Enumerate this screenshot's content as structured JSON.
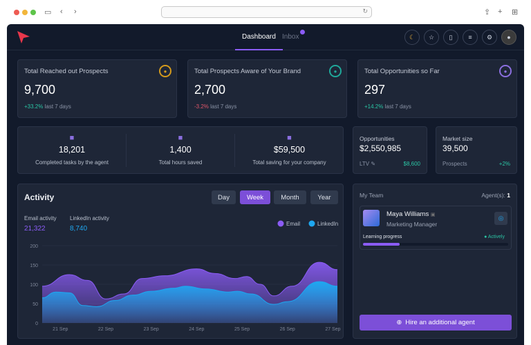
{
  "browser": {
    "url": ""
  },
  "nav": {
    "tabs": [
      {
        "label": "Dashboard",
        "active": true
      },
      {
        "label": "Inbox",
        "badge": true
      }
    ],
    "icons": [
      "moon-icon",
      "star-icon",
      "book-icon",
      "database-icon",
      "gear-icon",
      "avatar"
    ]
  },
  "kpis": [
    {
      "title": "Total Reached out Prospects",
      "value": "9,700",
      "change": "+33.2%",
      "change_color": "#2bc4a4",
      "period": "last 7 days",
      "icon": "users-icon",
      "icon_color": "#d49a1c"
    },
    {
      "title": "Total Prospects Aware of Your Brand",
      "value": "2,700",
      "change": "-3.2%",
      "change_color": "#e0566a",
      "period": "last 7 days",
      "icon": "globe-icon",
      "icon_color": "#1fa89a"
    },
    {
      "title": "Total Opportunities so Far",
      "value": "297",
      "change": "+14.2%",
      "change_color": "#2bc4a4",
      "period": "last 7 days",
      "icon": "money-icon",
      "icon_color": "#8b6fe0"
    }
  ],
  "stats": [
    {
      "value": "18,201",
      "label": "Completed tasks by the agent",
      "icon": "inbox-icon"
    },
    {
      "value": "1,400",
      "label": "Total hours saved",
      "icon": "clock-icon"
    },
    {
      "value": "$59,500",
      "label": "Total saving for your company",
      "icon": "money-icon"
    }
  ],
  "opportunities": {
    "title": "Opportunities",
    "value": "$2,550,985",
    "sub_label": "LTV",
    "sub_value": "$8,600"
  },
  "market": {
    "title": "Market size",
    "value": "39,500",
    "sub_label": "Prospects",
    "sub_value": "+2%"
  },
  "activity": {
    "title": "Activity",
    "ranges": [
      "Day",
      "Week",
      "Month",
      "Year"
    ],
    "selected": "Week",
    "email_label": "Email activity",
    "email_value": "21,322",
    "linkedin_label": "LinkedIn activity",
    "linkedin_value": "8,740"
  },
  "chart_data": {
    "type": "area",
    "ylim": [
      0,
      200
    ],
    "yticks": [
      0,
      50,
      100,
      150,
      200
    ],
    "xlim": [
      20.6,
      27.1
    ],
    "xticks": [
      {
        "x": 21,
        "label": "21 Sep"
      },
      {
        "x": 22,
        "label": "22 Sep"
      },
      {
        "x": 23,
        "label": "23 Sep"
      },
      {
        "x": 24,
        "label": "24 Sep"
      },
      {
        "x": 25,
        "label": "25 Sep"
      },
      {
        "x": 26,
        "label": "26 Sep"
      },
      {
        "x": 27,
        "label": "27 Sep"
      }
    ],
    "legend_position": "top-right",
    "grid": true,
    "series": [
      {
        "name": "Email",
        "color": "#8b5cf6",
        "points": [
          [
            20.6,
            95
          ],
          [
            21.2,
            125
          ],
          [
            21.6,
            110
          ],
          [
            22.0,
            62
          ],
          [
            22.4,
            75
          ],
          [
            22.8,
            115
          ],
          [
            23.3,
            122
          ],
          [
            24.0,
            140
          ],
          [
            24.4,
            128
          ],
          [
            24.85,
            115
          ],
          [
            25.1,
            120
          ],
          [
            25.4,
            100
          ],
          [
            25.7,
            70
          ],
          [
            26.1,
            95
          ],
          [
            26.7,
            157
          ],
          [
            27.1,
            138
          ]
        ]
      },
      {
        "name": "LinkedIn",
        "color": "#1ea7f0",
        "points": [
          [
            20.6,
            65
          ],
          [
            20.9,
            80
          ],
          [
            21.2,
            78
          ],
          [
            21.5,
            45
          ],
          [
            21.8,
            42
          ],
          [
            22.2,
            58
          ],
          [
            22.6,
            72
          ],
          [
            23.0,
            82
          ],
          [
            23.5,
            90
          ],
          [
            23.75,
            95
          ],
          [
            24.2,
            88
          ],
          [
            24.7,
            80
          ],
          [
            24.9,
            82
          ],
          [
            25.2,
            75
          ],
          [
            25.7,
            48
          ],
          [
            26.0,
            55
          ],
          [
            26.7,
            107
          ],
          [
            27.1,
            95
          ]
        ]
      }
    ]
  },
  "team": {
    "title": "My Team",
    "agents_label": "Agent(s):",
    "agents_count": "1",
    "member": {
      "name": "Maya Williams",
      "role": "Marketing Manager",
      "progress_label": "Learning progress",
      "status": "Actively",
      "progress": 0.25
    },
    "hire_label": "Hire an additional agent"
  }
}
